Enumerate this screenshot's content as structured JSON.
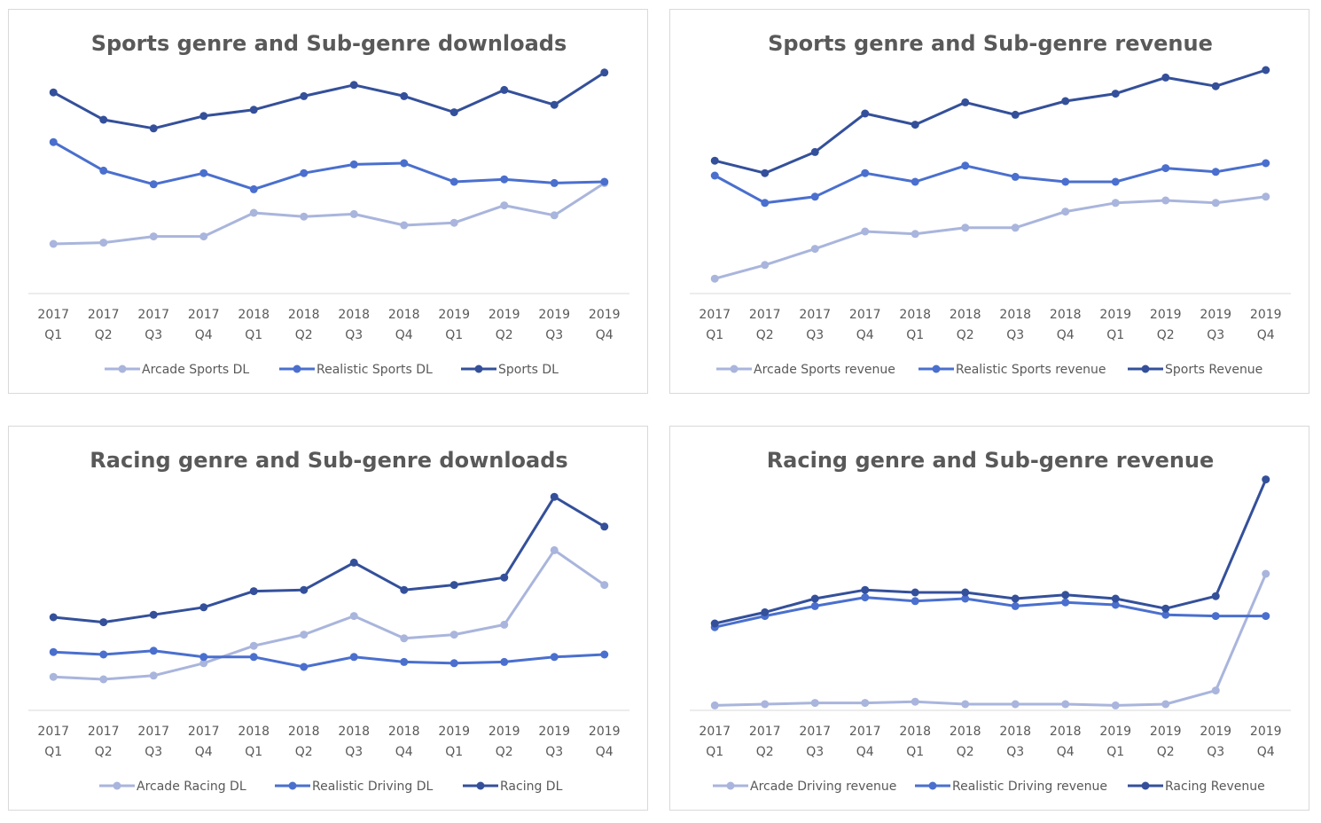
{
  "categories_year": [
    "2017",
    "2017",
    "2017",
    "2017",
    "2018",
    "2018",
    "2018",
    "2018",
    "2019",
    "2019",
    "2019",
    "2019"
  ],
  "categories_quarter": [
    "Q1",
    "Q2",
    "Q3",
    "Q4",
    "Q1",
    "Q2",
    "Q3",
    "Q4",
    "Q1",
    "Q2",
    "Q3",
    "Q4"
  ],
  "colors": {
    "light": "#a9b5dc",
    "mid": "#4a6fce",
    "dark": "#34509a",
    "axis": "#d9d9d9"
  },
  "chart_data": [
    {
      "type": "line",
      "title": "Sports genre and Sub-genre downloads",
      "categories": [
        "2017 Q1",
        "2017 Q2",
        "2017 Q3",
        "2017 Q4",
        "2018 Q1",
        "2018 Q2",
        "2018 Q3",
        "2018 Q4",
        "2019 Q1",
        "2019 Q2",
        "2019 Q3",
        "2019 Q4"
      ],
      "ylim": [
        0,
        100
      ],
      "legend_position": "bottom",
      "series": [
        {
          "name": "Arcade Sports DL",
          "color": "#a9b5dc",
          "values": [
            20.0,
            20.5,
            23.0,
            23.0,
            32.5,
            31.0,
            32.0,
            27.5,
            28.5,
            35.5,
            31.5,
            44.5
          ]
        },
        {
          "name": "Realistic Sports DL",
          "color": "#4a6fce",
          "values": [
            61.0,
            49.5,
            44.0,
            48.5,
            42.0,
            48.5,
            52.0,
            52.5,
            45.0,
            46.0,
            44.5,
            45.0
          ]
        },
        {
          "name": "Sports DL",
          "color": "#34509a",
          "values": [
            81.0,
            70.0,
            66.5,
            71.5,
            74.0,
            79.5,
            84.0,
            79.5,
            73.0,
            82.0,
            76.0,
            89.0
          ]
        }
      ]
    },
    {
      "type": "line",
      "title": "Sports genre and Sub-genre revenue",
      "categories": [
        "2017 Q1",
        "2017 Q2",
        "2017 Q3",
        "2017 Q4",
        "2018 Q1",
        "2018 Q2",
        "2018 Q3",
        "2018 Q4",
        "2019 Q1",
        "2019 Q2",
        "2019 Q3",
        "2019 Q4"
      ],
      "ylim": [
        0,
        100
      ],
      "legend_position": "bottom",
      "series": [
        {
          "name": "Arcade Sports revenue",
          "color": "#a9b5dc",
          "values": [
            6.0,
            11.5,
            18.0,
            25.0,
            24.0,
            26.5,
            26.5,
            33.0,
            36.5,
            37.5,
            36.5,
            39.0
          ]
        },
        {
          "name": "Realistic Sports revenue",
          "color": "#4a6fce",
          "values": [
            47.5,
            36.5,
            39.0,
            48.5,
            45.0,
            51.5,
            47.0,
            45.0,
            45.0,
            50.5,
            49.0,
            52.5
          ]
        },
        {
          "name": "Sports Revenue",
          "color": "#34509a",
          "values": [
            53.5,
            48.5,
            57.0,
            72.5,
            68.0,
            77.0,
            72.0,
            77.5,
            80.5,
            87.0,
            83.5,
            90.0
          ]
        }
      ]
    },
    {
      "type": "line",
      "title": "Racing genre and Sub-genre downloads",
      "categories": [
        "2017 Q1",
        "2017 Q2",
        "2017 Q3",
        "2017 Q4",
        "2018 Q1",
        "2018 Q2",
        "2018 Q3",
        "2018 Q4",
        "2019 Q1",
        "2019 Q2",
        "2019 Q3",
        "2019 Q4"
      ],
      "ylim": [
        0,
        100
      ],
      "legend_position": "bottom",
      "series": [
        {
          "name": "Arcade Racing DL",
          "color": "#a9b5dc",
          "values": [
            13.5,
            12.5,
            14.0,
            19.0,
            26.0,
            30.5,
            38.0,
            29.0,
            30.5,
            34.5,
            64.5,
            50.5
          ]
        },
        {
          "name": "Realistic Driving DL",
          "color": "#4a6fce",
          "values": [
            23.5,
            22.5,
            24.0,
            21.5,
            21.5,
            17.5,
            21.5,
            19.5,
            19.0,
            19.5,
            21.5,
            22.5
          ]
        },
        {
          "name": "Racing DL",
          "color": "#34509a",
          "values": [
            37.5,
            35.5,
            38.5,
            41.5,
            48.0,
            48.5,
            59.5,
            48.5,
            50.5,
            53.5,
            86.0,
            74.0
          ]
        }
      ]
    },
    {
      "type": "line",
      "title": "Racing genre and Sub-genre revenue",
      "categories": [
        "2017 Q1",
        "2017 Q2",
        "2017 Q3",
        "2017 Q4",
        "2018 Q1",
        "2018 Q2",
        "2018 Q3",
        "2018 Q4",
        "2019 Q1",
        "2019 Q2",
        "2019 Q3",
        "2019 Q4"
      ],
      "ylim": [
        0,
        100
      ],
      "legend_position": "bottom",
      "series": [
        {
          "name": "Arcade Driving revenue",
          "color": "#a9b5dc",
          "values": [
            2.0,
            2.5,
            3.0,
            3.0,
            3.5,
            2.5,
            2.5,
            2.5,
            2.0,
            2.5,
            8.0,
            55.0
          ]
        },
        {
          "name": "Realistic Driving  revenue",
          "color": "#4a6fce",
          "values": [
            33.5,
            38.0,
            42.0,
            45.5,
            44.0,
            45.0,
            42.0,
            43.5,
            42.5,
            38.5,
            38.0,
            38.0
          ]
        },
        {
          "name": "Racing Revenue",
          "color": "#34509a",
          "values": [
            35.0,
            39.5,
            45.0,
            48.5,
            47.5,
            47.5,
            45.0,
            46.5,
            45.0,
            41.0,
            46.0,
            93.0
          ]
        }
      ]
    }
  ]
}
